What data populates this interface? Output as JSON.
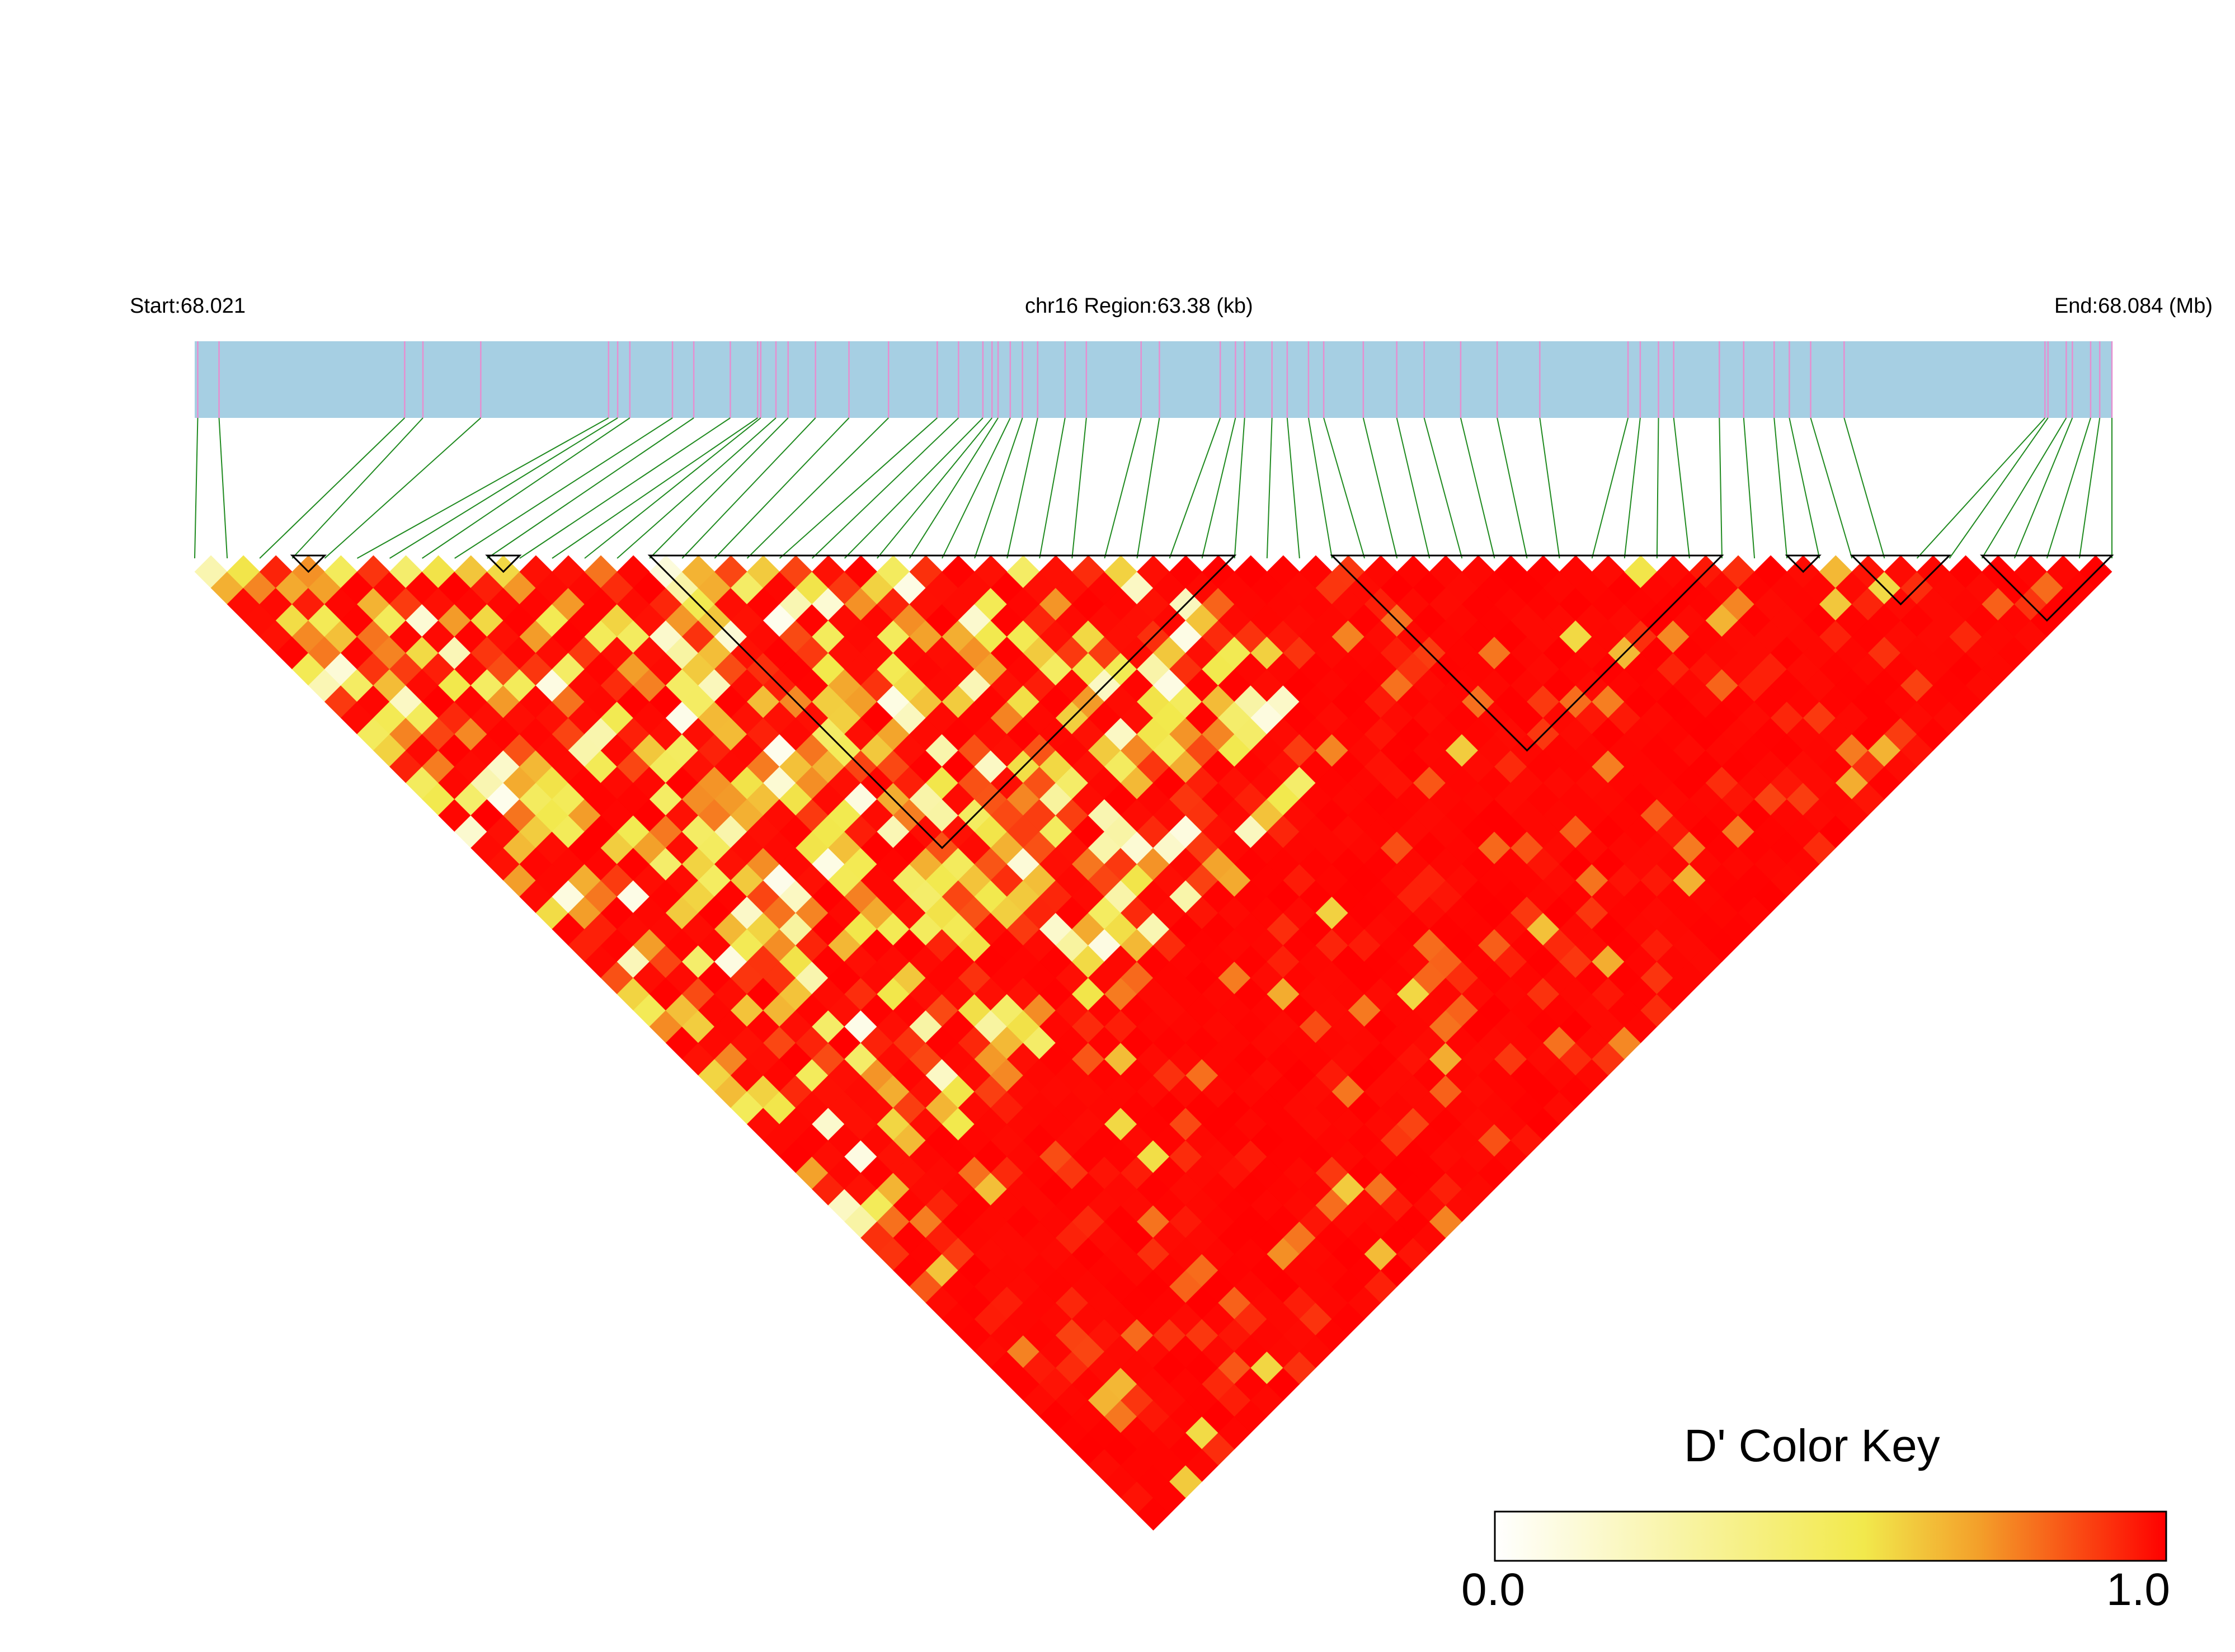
{
  "chart_data": {
    "type": "heatmap",
    "subtype": "linkage-disequilibrium-triangle",
    "metric": "D'",
    "header": {
      "start_label": "Start:68.021",
      "region_label": "chr16 Region:63.38 (kb)",
      "end_label": "End:68.084 (Mb)"
    },
    "region": {
      "chromosome": "chr16",
      "start_mb": 68.021,
      "end_mb": 68.084,
      "length_kb": 63.38
    },
    "n_snps": 60,
    "snp_positions_mb": [
      68.0211,
      68.0218,
      68.0279,
      68.0285,
      68.0304,
      68.0346,
      68.0349,
      68.0353,
      68.0367,
      68.0374,
      68.0386,
      68.0395,
      68.0396,
      68.0401,
      68.0405,
      68.0414,
      68.0425,
      68.0438,
      68.0454,
      68.0461,
      68.0469,
      68.0472,
      68.0474,
      68.0478,
      68.0482,
      68.0487,
      68.0496,
      68.0503,
      68.0521,
      68.0527,
      68.0547,
      68.0552,
      68.0555,
      68.0564,
      68.0569,
      68.0576,
      68.0581,
      68.0594,
      68.0605,
      68.0614,
      68.0626,
      68.0638,
      68.0652,
      68.0681,
      68.0685,
      68.0691,
      68.0696,
      68.0711,
      68.0719,
      68.0729,
      68.0734,
      68.0741,
      68.0752,
      68.0818,
      68.0819,
      68.0825,
      68.0827,
      68.0833,
      68.0836,
      68.084
    ],
    "haplotype_blocks": [
      {
        "first_snp": 3,
        "last_snp": 4
      },
      {
        "first_snp": 9,
        "last_snp": 10
      },
      {
        "first_snp": 14,
        "last_snp": 32
      },
      {
        "first_snp": 35,
        "last_snp": 47
      },
      {
        "first_snp": 49,
        "last_snp": 50
      },
      {
        "first_snp": 51,
        "last_snp": 54
      },
      {
        "first_snp": 55,
        "last_snp": 59
      }
    ],
    "color_key": {
      "title": "D' Color Key",
      "min_label": "0.0",
      "max_label": "1.0",
      "min": 0.0,
      "max": 1.0,
      "stops": [
        "#ffffff",
        "#f5ea4a",
        "#f39a28",
        "#ff0000"
      ]
    },
    "colors": {
      "region_bar": "#a6cfe3",
      "snp_tick": "#e68fd0",
      "connector": "#1f8a1f",
      "block_outline": "#000000"
    },
    "dprime_matrix_note": "mostly strong LD (D' near 1.0) with low-D' cells concentrated among the first ~30 SNPs"
  }
}
